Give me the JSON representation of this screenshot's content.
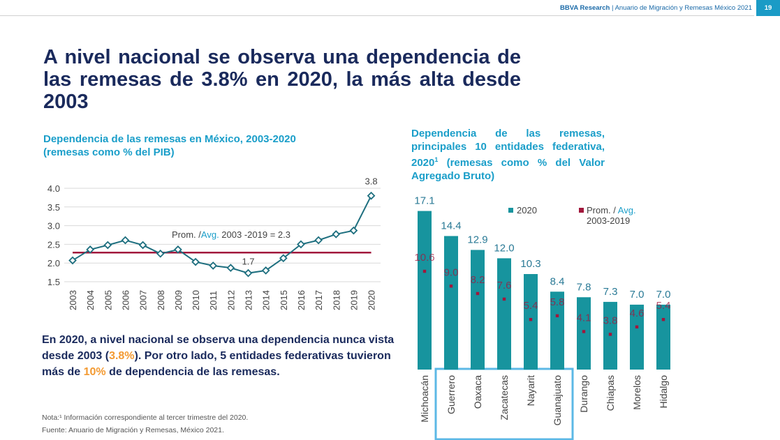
{
  "header": {
    "org": "BBVA Research",
    "separator": " | ",
    "doc": "Anuario de Migración y Remesas México 2021",
    "page": "19"
  },
  "title": "A nivel nacional se observa una dependencia de las remesas de 3.8% en 2020, la más alta desde 2003",
  "summary": {
    "part1": "En 2020, a nivel nacional se observa una dependencia nunca vista desde 2003 (",
    "hl1": "3.8%",
    "part2": "). Por otro lado, 5 entidades federativas tuvieron más de ",
    "hl2": "10%",
    "part3": " de dependencia de las remesas."
  },
  "notes": {
    "note": "Nota:¹ Información correspondiente al tercer trimestre del 2020.",
    "source": "Fuente: Anuario de Migración y Remesas, México 2021."
  },
  "colors": {
    "accent": "#1a9ec9",
    "line": "#1e6f7f",
    "avg": "#a1173c",
    "bar": "#17949e",
    "highlight": "#f39a32",
    "box": "#5cb8e6"
  },
  "chart_data": [
    {
      "type": "line",
      "title": "Dependencia de las remesas en México, 2003-2020",
      "subtitle": "(remesas como % del PIB)",
      "x": [
        "2003",
        "2004",
        "2005",
        "2006",
        "2007",
        "2008",
        "2009",
        "2010",
        "2011",
        "2012",
        "2013",
        "2014",
        "2015",
        "2016",
        "2017",
        "2018",
        "2019",
        "2020"
      ],
      "series": [
        {
          "name": "Dependencia",
          "values": [
            2.07,
            2.36,
            2.48,
            2.61,
            2.48,
            2.25,
            2.36,
            2.03,
            1.93,
            1.87,
            1.73,
            1.8,
            2.13,
            2.5,
            2.61,
            2.77,
            2.87,
            3.8
          ]
        }
      ],
      "yticks": [
        "1.5",
        "2.0",
        "2.5",
        "3.0",
        "3.5",
        "4.0"
      ],
      "ylim": [
        1.5,
        4.0
      ],
      "average": {
        "value": 2.28,
        "prefix": "Prom. /",
        "avg_word": "Avg.",
        "suffix": " 2003 -2019 = 2.3"
      },
      "labels": [
        {
          "year": "2013",
          "text": "1.7"
        },
        {
          "year": "2020",
          "text": "3.8"
        }
      ]
    },
    {
      "type": "bar",
      "title": "Dependencia de las remesas, principales 10 entidades federativa, 2020",
      "title_sup": "1",
      "subtitle": "(remesas como % del Valor Agregado Bruto)",
      "categories": [
        "Michoacán",
        "Guerrero",
        "Oaxaca",
        "Zacatecas",
        "Nayarit",
        "Guanajuato",
        "Durango",
        "Chiapas",
        "Morelos",
        "Hidalgo"
      ],
      "series": [
        {
          "name": "2020",
          "values": [
            17.1,
            14.4,
            12.9,
            12.0,
            10.3,
            8.4,
            7.8,
            7.3,
            7.0,
            7.0
          ],
          "labels": [
            "17.1",
            "14.4",
            "12.9",
            "12.0",
            "10.3",
            "8.4",
            "7.8",
            "7.3",
            "7.0",
            "7.0"
          ]
        },
        {
          "name": "Prom. / Avg. 2003-2019",
          "values": [
            10.6,
            9.0,
            8.2,
            7.6,
            5.4,
            5.8,
            4.1,
            3.8,
            4.6,
            5.4
          ],
          "labels": [
            "10.6",
            "9.0",
            "8.2",
            "7.6",
            "5.4",
            "5.8",
            "4.1",
            "3.8",
            "4.6",
            "5.4"
          ]
        }
      ],
      "legend": {
        "s1": "2020",
        "s2_prefix": "Prom. / ",
        "s2_avg": "Avg.",
        "s2_line2": "2003-2019"
      },
      "highlighted": [
        "Guerrero",
        "Oaxaca",
        "Zacatecas",
        "Nayarit",
        "Guanajuato"
      ]
    }
  ]
}
